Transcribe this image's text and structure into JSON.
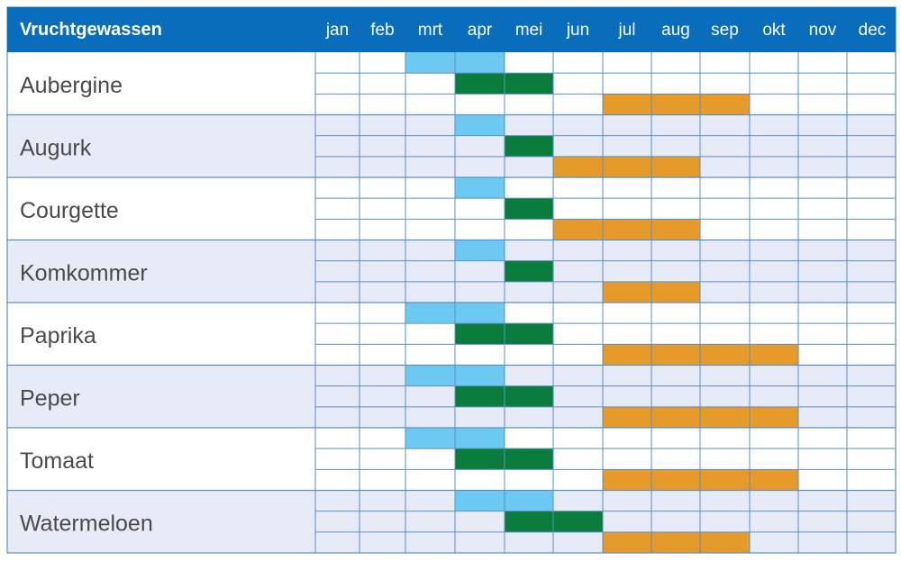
{
  "header": {
    "title": "Vruchtgewassen",
    "months": [
      "jan",
      "feb",
      "mrt",
      "apr",
      "mei",
      "jun",
      "jul",
      "aug",
      "sep",
      "okt",
      "nov",
      "dec"
    ]
  },
  "colors": {
    "header_bg": "#0a6dbc",
    "row_band": "#e6ebf7",
    "row_white": "#ffffff",
    "grid": "#5b8fc6",
    "border": "#5b8fc6",
    "stage_1": "#6cc9f2",
    "stage_2": "#0a7d3c",
    "stage_3": "#e59a2a"
  },
  "chart_data": {
    "type": "table",
    "title": "Vruchtgewassen",
    "categories": [
      "jan",
      "feb",
      "mrt",
      "apr",
      "mei",
      "jun",
      "jul",
      "aug",
      "sep",
      "okt",
      "nov",
      "dec"
    ],
    "stages": [
      "stage_1",
      "stage_2",
      "stage_3"
    ],
    "rows": [
      {
        "name": "Aubergine",
        "stage_1": [
          "mrt",
          "apr"
        ],
        "stage_2": [
          "apr",
          "mei"
        ],
        "stage_3": [
          "jul",
          "aug",
          "sep"
        ]
      },
      {
        "name": "Augurk",
        "stage_1": [
          "apr"
        ],
        "stage_2": [
          "mei"
        ],
        "stage_3": [
          "jun",
          "jul",
          "aug"
        ]
      },
      {
        "name": "Courgette",
        "stage_1": [
          "apr"
        ],
        "stage_2": [
          "mei"
        ],
        "stage_3": [
          "jun",
          "jul",
          "aug"
        ]
      },
      {
        "name": "Komkommer",
        "stage_1": [
          "apr"
        ],
        "stage_2": [
          "mei"
        ],
        "stage_3": [
          "jul",
          "aug"
        ]
      },
      {
        "name": "Paprika",
        "stage_1": [
          "mrt",
          "apr"
        ],
        "stage_2": [
          "apr",
          "mei"
        ],
        "stage_3": [
          "jul",
          "aug",
          "sep",
          "okt"
        ]
      },
      {
        "name": "Peper",
        "stage_1": [
          "mrt",
          "apr"
        ],
        "stage_2": [
          "apr",
          "mei"
        ],
        "stage_3": [
          "jul",
          "aug",
          "sep",
          "okt"
        ]
      },
      {
        "name": "Tomaat",
        "stage_1": [
          "mrt",
          "apr"
        ],
        "stage_2": [
          "apr",
          "mei"
        ],
        "stage_3": [
          "jul",
          "aug",
          "sep",
          "okt"
        ]
      },
      {
        "name": "Watermeloen",
        "stage_1": [
          "apr",
          "mei"
        ],
        "stage_2": [
          "mei",
          "jun"
        ],
        "stage_3": [
          "jul",
          "aug",
          "sep"
        ]
      }
    ]
  }
}
